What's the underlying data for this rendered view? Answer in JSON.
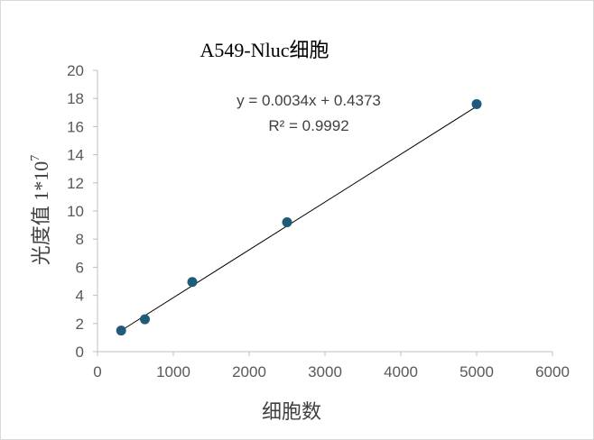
{
  "chart_data": {
    "type": "scatter",
    "title": "A549-Nluc细胞",
    "xlabel": "细胞数",
    "ylabel_main": "光度值 1*10",
    "ylabel_sup": "7",
    "xlim": [
      0,
      6000
    ],
    "ylim": [
      0,
      20
    ],
    "xticks": [
      0,
      1000,
      2000,
      3000,
      4000,
      5000,
      6000
    ],
    "yticks": [
      0,
      2,
      4,
      6,
      8,
      10,
      12,
      14,
      16,
      18,
      20
    ],
    "grid": false,
    "points": [
      {
        "x": 312,
        "y": 1.5
      },
      {
        "x": 625,
        "y": 2.3
      },
      {
        "x": 1250,
        "y": 4.95
      },
      {
        "x": 2500,
        "y": 9.2
      },
      {
        "x": 5000,
        "y": 17.6
      }
    ],
    "trendline": {
      "slope": 0.0034,
      "intercept": 0.4373,
      "equation_label": "y = 0.0034x + 0.4373",
      "r2_label": "R² = 0.9992"
    },
    "colors": {
      "marker": "#1f5c7a",
      "axis": "#bfbfbf",
      "trendline": "#000000",
      "text": "#595959"
    }
  }
}
